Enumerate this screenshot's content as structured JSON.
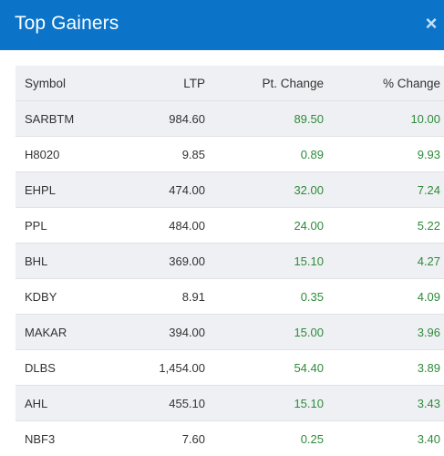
{
  "header": {
    "title": "Top Gainers",
    "close_glyph": "×"
  },
  "table": {
    "columns": [
      "Symbol",
      "LTP",
      "Pt. Change",
      "% Change"
    ],
    "rows": [
      {
        "symbol": "SARBTM",
        "ltp": "984.60",
        "pt_change": "89.50",
        "pct_change": "10.00"
      },
      {
        "symbol": "H8020",
        "ltp": "9.85",
        "pt_change": "0.89",
        "pct_change": "9.93"
      },
      {
        "symbol": "EHPL",
        "ltp": "474.00",
        "pt_change": "32.00",
        "pct_change": "7.24"
      },
      {
        "symbol": "PPL",
        "ltp": "484.00",
        "pt_change": "24.00",
        "pct_change": "5.22"
      },
      {
        "symbol": "BHL",
        "ltp": "369.00",
        "pt_change": "15.10",
        "pct_change": "4.27"
      },
      {
        "symbol": "KDBY",
        "ltp": "8.91",
        "pt_change": "0.35",
        "pct_change": "4.09"
      },
      {
        "symbol": "MAKAR",
        "ltp": "394.00",
        "pt_change": "15.00",
        "pct_change": "3.96"
      },
      {
        "symbol": "DLBS",
        "ltp": "1,454.00",
        "pt_change": "54.40",
        "pct_change": "3.89"
      },
      {
        "symbol": "AHL",
        "ltp": "455.10",
        "pt_change": "15.10",
        "pct_change": "3.43"
      },
      {
        "symbol": "NBF3",
        "ltp": "7.60",
        "pt_change": "0.25",
        "pct_change": "3.40"
      }
    ]
  },
  "colors": {
    "header_bg": "#0b74c9",
    "gain_green": "#2e8b3a",
    "row_shade": "#eef0f3"
  }
}
